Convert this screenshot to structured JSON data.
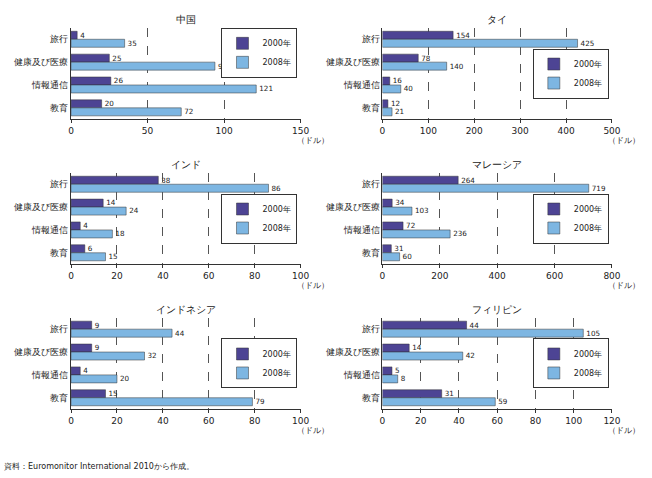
{
  "chart_data": [
    {
      "type": "bar",
      "title": "中国",
      "orientation": "horizontal",
      "categories": [
        "旅行",
        "健康及び医療",
        "情報通信",
        "教育"
      ],
      "series": [
        {
          "name": "2000年",
          "color": "#4d4494",
          "values": [
            4,
            25,
            26,
            20
          ]
        },
        {
          "name": "2008年",
          "color": "#7db6e2",
          "values": [
            35,
            94,
            121,
            72
          ]
        }
      ],
      "xlim": [
        0,
        150
      ],
      "xticks": [
        0,
        50,
        100,
        150
      ],
      "xlabel": "（ドル）",
      "grid": true,
      "data_labels": true,
      "legend": "upper right"
    },
    {
      "type": "bar",
      "title": "タイ",
      "orientation": "horizontal",
      "categories": [
        "旅行",
        "健康及び医療",
        "情報通信",
        "教育"
      ],
      "series": [
        {
          "name": "2000年",
          "color": "#4d4494",
          "values": [
            154,
            78,
            16,
            12
          ]
        },
        {
          "name": "2008年",
          "color": "#7db6e2",
          "values": [
            425,
            140,
            40,
            21
          ]
        }
      ],
      "xlim": [
        0,
        500
      ],
      "xticks": [
        0,
        100,
        200,
        300,
        400,
        500
      ],
      "xlabel": "（ドル）",
      "grid": true,
      "data_labels": true,
      "legend": "right"
    },
    {
      "type": "bar",
      "title": "インド",
      "orientation": "horizontal",
      "categories": [
        "旅行",
        "健康及び医療",
        "情報通信",
        "教育"
      ],
      "series": [
        {
          "name": "2000年",
          "color": "#4d4494",
          "values": [
            38,
            14,
            4,
            6
          ]
        },
        {
          "name": "2008年",
          "color": "#7db6e2",
          "values": [
            86,
            24,
            18,
            15
          ]
        }
      ],
      "xlim": [
        0,
        100
      ],
      "xticks": [
        0,
        20,
        40,
        60,
        80,
        100
      ],
      "xlabel": "（ドル）",
      "grid": true,
      "data_labels": true,
      "legend": "right"
    },
    {
      "type": "bar",
      "title": "マレーシア",
      "orientation": "horizontal",
      "categories": [
        "旅行",
        "健康及び医療",
        "情報通信",
        "教育"
      ],
      "series": [
        {
          "name": "2000年",
          "color": "#4d4494",
          "values": [
            264,
            34,
            72,
            31
          ]
        },
        {
          "name": "2008年",
          "color": "#7db6e2",
          "values": [
            719,
            103,
            236,
            60
          ]
        }
      ],
      "xlim": [
        0,
        800
      ],
      "xticks": [
        0,
        200,
        400,
        600,
        800
      ],
      "xlabel": "（ドル）",
      "grid": true,
      "data_labels": true,
      "legend": "right"
    },
    {
      "type": "bar",
      "title": "インドネシア",
      "orientation": "horizontal",
      "categories": [
        "旅行",
        "健康及び医療",
        "情報通信",
        "教育"
      ],
      "series": [
        {
          "name": "2000年",
          "color": "#4d4494",
          "values": [
            9,
            9,
            4,
            15
          ]
        },
        {
          "name": "2008年",
          "color": "#7db6e2",
          "values": [
            44,
            32,
            20,
            79
          ]
        }
      ],
      "xlim": [
        0,
        100
      ],
      "xticks": [
        0,
        20,
        40,
        60,
        80,
        100
      ],
      "xlabel": "（ドル）",
      "grid": true,
      "data_labels": true,
      "legend": "right"
    },
    {
      "type": "bar",
      "title": "フィリピン",
      "orientation": "horizontal",
      "categories": [
        "旅行",
        "健康及び医療",
        "情報通信",
        "教育"
      ],
      "series": [
        {
          "name": "2000年",
          "color": "#4d4494",
          "values": [
            44,
            14,
            5,
            31
          ]
        },
        {
          "name": "2008年",
          "color": "#7db6e2",
          "values": [
            105,
            42,
            8,
            59
          ]
        }
      ],
      "xlim": [
        0,
        120
      ],
      "xticks": [
        0,
        20,
        40,
        60,
        80,
        100,
        120
      ],
      "xlabel": "（ドル）",
      "grid": true,
      "data_labels": true,
      "legend": "right"
    }
  ],
  "source": "資料：Euromonitor International 2010から作成。"
}
